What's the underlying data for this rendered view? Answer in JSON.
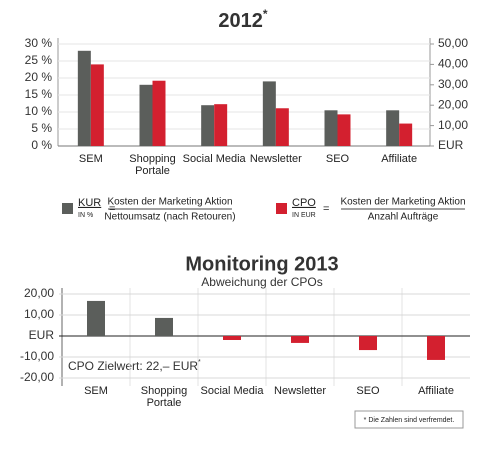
{
  "chart_data": [
    {
      "type": "bar",
      "title": "2012",
      "title_mark": "*",
      "categories": [
        "SEM",
        "Shopping\nPortale",
        "Social Media",
        "Newsletter",
        "SEO",
        "Affiliate"
      ],
      "series": [
        {
          "name": "KUR",
          "unit": "IN %",
          "relation": "=",
          "numerator": "Kosten der Marketing Aktion",
          "denominator": "Nettoumsatz (nach Retouren)",
          "color": "#5b5e5b",
          "axis": "y",
          "values": [
            28,
            18,
            12,
            19,
            10.5,
            10.5
          ]
        },
        {
          "name": "CPO",
          "unit": "IN EUR",
          "relation": "=",
          "numerator": "Kosten der Marketing Aktion",
          "denominator": "Anzahl Aufträge",
          "color": "#d3202f",
          "axis": "y2",
          "values": [
            40,
            32,
            20.5,
            18.5,
            15.5,
            11
          ]
        }
      ],
      "ylim": [
        0,
        30
      ],
      "yticks": [
        {
          "value": 0,
          "label": "0 %"
        },
        {
          "value": 5,
          "label": "5 %"
        },
        {
          "value": 10,
          "label": "10 %"
        },
        {
          "value": 15,
          "label": "15 %"
        },
        {
          "value": 20,
          "label": "20 %"
        },
        {
          "value": 25,
          "label": "25 %"
        },
        {
          "value": 30,
          "label": "30 %"
        }
      ],
      "y2lim": [
        0,
        50
      ],
      "y2ticks": [
        {
          "value": 0,
          "label": "EUR"
        },
        {
          "value": 10,
          "label": "10,00"
        },
        {
          "value": 20,
          "label": "20,00"
        },
        {
          "value": 30,
          "label": "30,00"
        },
        {
          "value": 40,
          "label": "40,00"
        },
        {
          "value": 50,
          "label": "50,00"
        }
      ]
    },
    {
      "type": "bar",
      "title": "Monitoring 2013",
      "subtitle": "Abweichung der CPOs",
      "categories": [
        "SEM",
        "Shopping\nPortale",
        "Social Media",
        "Newsletter",
        "SEO",
        "Affiliate"
      ],
      "values": [
        16.7,
        8.6,
        -1.9,
        -3.3,
        -6.7,
        -11.4
      ],
      "colors": [
        "#5b5e5b",
        "#5b5e5b",
        "#d3202f",
        "#d3202f",
        "#d3202f",
        "#d3202f"
      ],
      "ylim": [
        -20,
        20
      ],
      "yticks": [
        {
          "value": -20,
          "label": "-20,00"
        },
        {
          "value": -10,
          "label": "-10,00"
        },
        {
          "value": 0,
          "label": "EUR"
        },
        {
          "value": 10,
          "label": "10,00"
        },
        {
          "value": 20,
          "label": "20,00"
        }
      ],
      "annotation": "CPO Zielwert: 22,– EUR",
      "annotation_mark": "*"
    }
  ],
  "footnote": "* Die Zahlen sind verfremdet."
}
